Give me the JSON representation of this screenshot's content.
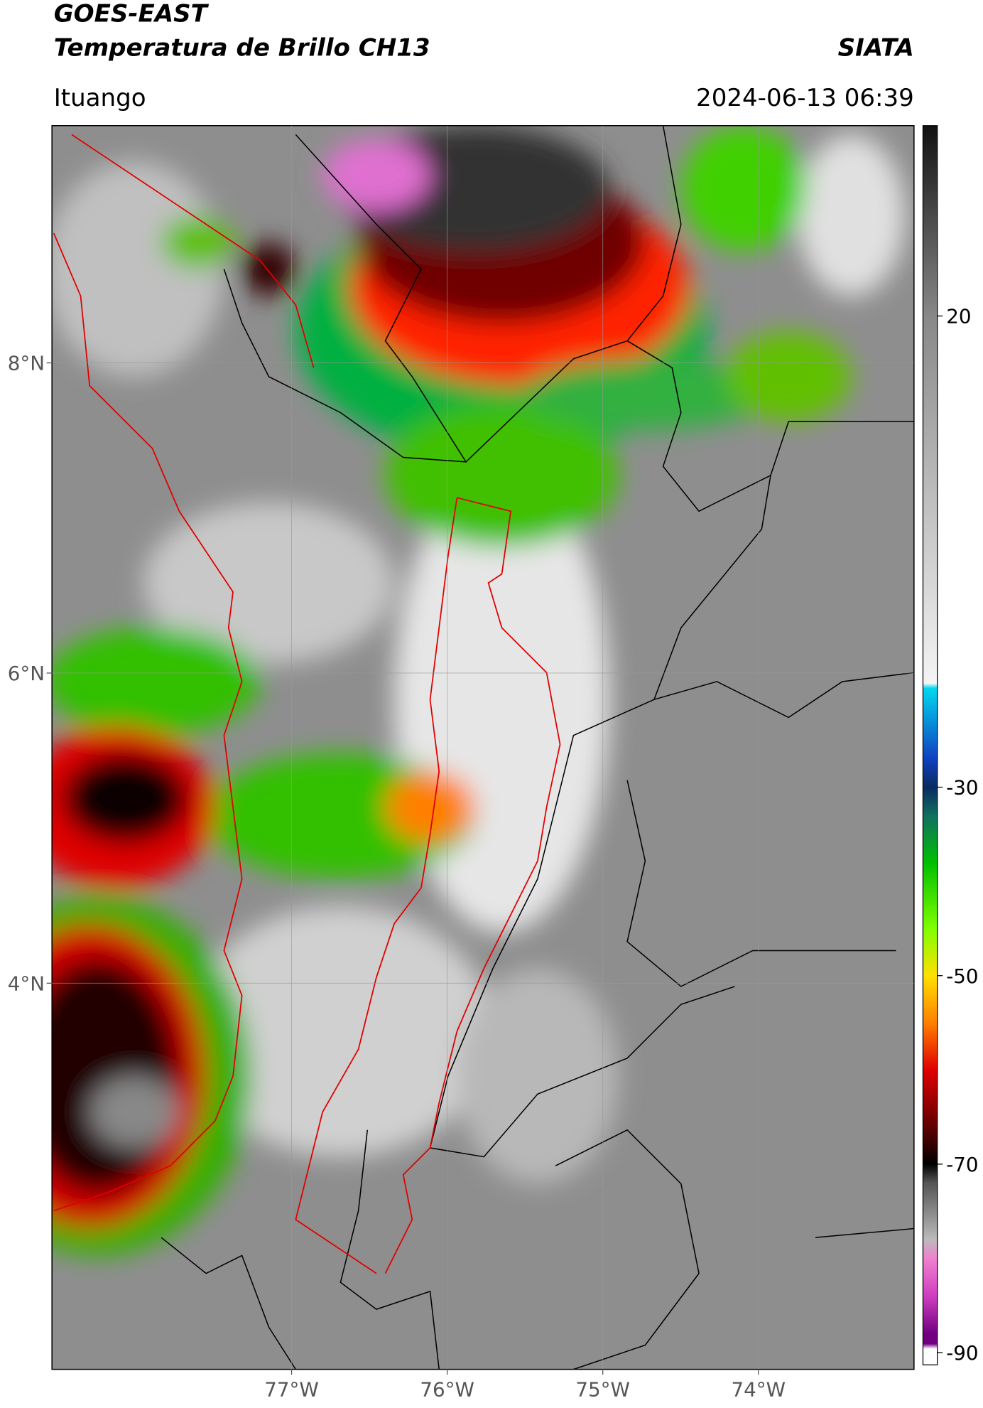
{
  "header": {
    "title": "GOES-EAST",
    "subtitle": "Temperatura de Brillo CH13",
    "source": "SIATA",
    "location": "Ituango",
    "datetime": "2024-06-13 06:39"
  },
  "map": {
    "xlim": [
      -78.54,
      -73.0
    ],
    "ylim": [
      1.51,
      9.53
    ],
    "xticks": [
      {
        "value": -77,
        "label": "77°W"
      },
      {
        "value": -76,
        "label": "76°W"
      },
      {
        "value": -75,
        "label": "75°W"
      },
      {
        "value": -74,
        "label": "74°W"
      }
    ],
    "yticks": [
      {
        "value": 8,
        "label": "8°N"
      },
      {
        "value": 6,
        "label": "6°N"
      },
      {
        "value": 4,
        "label": "4°N"
      }
    ],
    "grid": true
  },
  "colorbar": {
    "lim": [
      -91.3,
      40.2
    ],
    "ticks": [
      20,
      -30,
      -50,
      -70,
      -90
    ]
  }
}
